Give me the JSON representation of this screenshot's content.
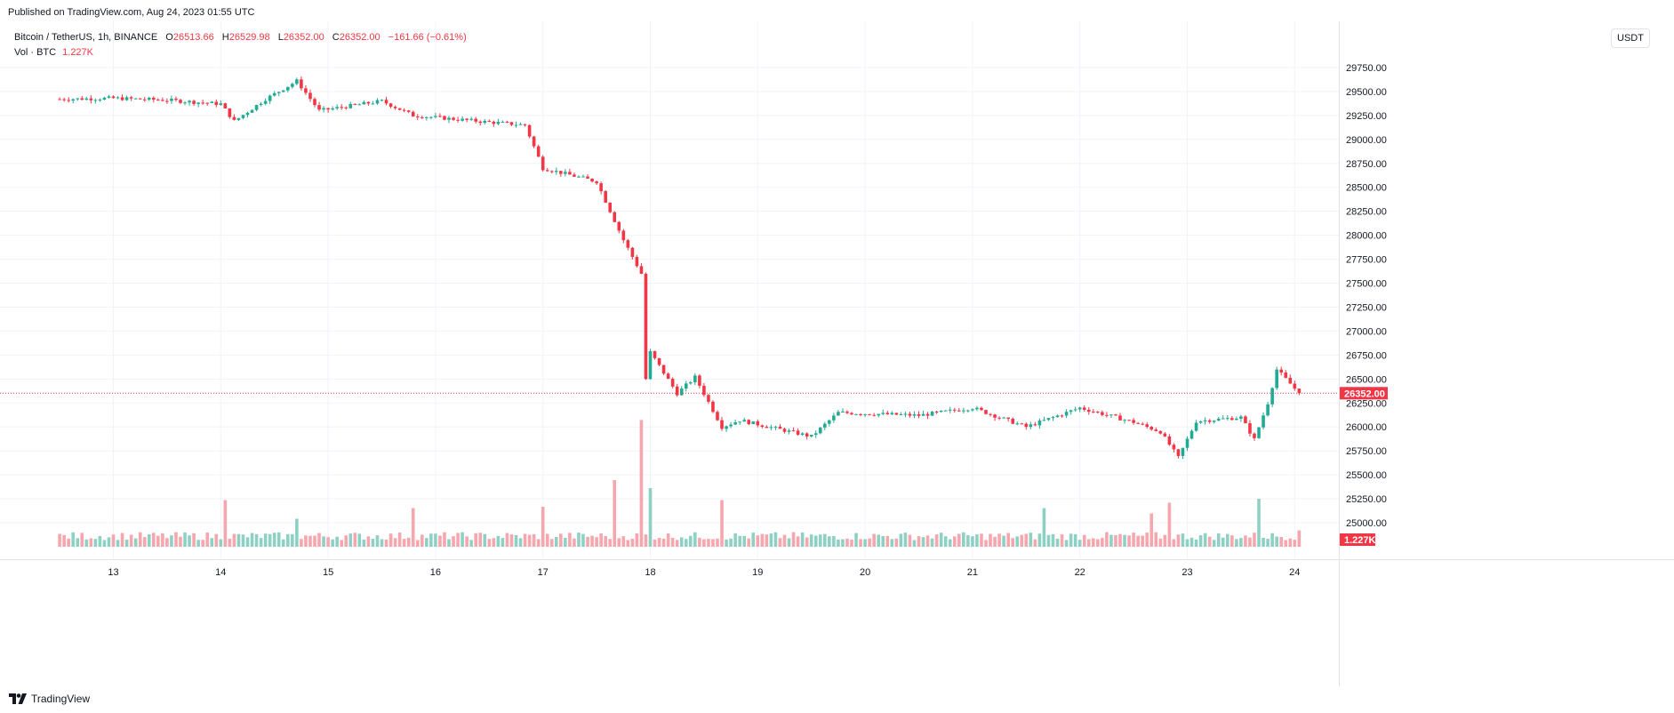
{
  "header": {
    "published": "Published on TradingView.com, Aug 24, 2023 01:55 UTC"
  },
  "legend": {
    "symbol": "Bitcoin / TetherUS, 1h, BINANCE",
    "o_label": "O",
    "o_value": "26513.66",
    "h_label": "H",
    "h_value": "26529.98",
    "l_label": "L",
    "l_value": "26352.00",
    "c_label": "C",
    "c_value": "26352.00",
    "change": "−161.66 (−0.61%)",
    "vol_label": "Vol · BTC",
    "vol_value": "1.227K"
  },
  "currency_button": "USDT",
  "footer": {
    "brand": "TradingView"
  },
  "colors": {
    "up": "#22ab94",
    "down": "#f23645",
    "up_vol": "#8fd0c5",
    "down_vol": "#f6a6ad",
    "grid": "#f0f3fa"
  },
  "chart_data": {
    "type": "candlestick",
    "symbol": "Bitcoin / TetherUS",
    "interval": "1h",
    "exchange": "BINANCE",
    "y_ticks": [
      "29750.00",
      "29500.00",
      "29250.00",
      "29000.00",
      "28750.00",
      "28500.00",
      "28250.00",
      "28000.00",
      "27750.00",
      "27500.00",
      "27250.00",
      "27000.00",
      "26750.00",
      "26500.00",
      "26250.00",
      "26000.00",
      "25750.00",
      "25500.00",
      "25250.00",
      "25000.00"
    ],
    "x_ticks": [
      "13",
      "14",
      "15",
      "16",
      "17",
      "18",
      "19",
      "20",
      "21",
      "22",
      "23",
      "24"
    ],
    "last_price": "26352.00",
    "last_volume": "1.227K",
    "price_ylim": [
      24750,
      30000
    ],
    "price_path_keypoints": [
      {
        "t": "Aug 12 12:00",
        "price": 29420
      },
      {
        "t": "Aug 13 00:00",
        "price": 29430
      },
      {
        "t": "Aug 13 12:00",
        "price": 29410
      },
      {
        "t": "Aug 14 00:00",
        "price": 29370
      },
      {
        "t": "Aug 14 03:00",
        "price": 29190
      },
      {
        "t": "Aug 14 10:00",
        "price": 29420
      },
      {
        "t": "Aug 14 17:00",
        "price": 29610
      },
      {
        "t": "Aug 14 22:00",
        "price": 29300
      },
      {
        "t": "Aug 15 12:00",
        "price": 29400
      },
      {
        "t": "Aug 15 19:00",
        "price": 29250
      },
      {
        "t": "Aug 16 12:00",
        "price": 29180
      },
      {
        "t": "Aug 16 20:00",
        "price": 29150
      },
      {
        "t": "Aug 17 00:00",
        "price": 28700
      },
      {
        "t": "Aug 17 12:00",
        "price": 28560
      },
      {
        "t": "Aug 17 18:00",
        "price": 27950
      },
      {
        "t": "Aug 17 22:00",
        "price": 27600
      },
      {
        "t": "Aug 17 23:00",
        "price": 26500
      },
      {
        "t": "Aug 18 00:00",
        "price": 26780
      },
      {
        "t": "Aug 18 06:00",
        "price": 26350
      },
      {
        "t": "Aug 18 10:00",
        "price": 26520
      },
      {
        "t": "Aug 18 16:00",
        "price": 26000
      },
      {
        "t": "Aug 18 20:00",
        "price": 26070
      },
      {
        "t": "Aug 19 12:00",
        "price": 25900
      },
      {
        "t": "Aug 19 18:00",
        "price": 26150
      },
      {
        "t": "Aug 20 12:00",
        "price": 26120
      },
      {
        "t": "Aug 21 00:00",
        "price": 26200
      },
      {
        "t": "Aug 21 12:00",
        "price": 26000
      },
      {
        "t": "Aug 22 00:00",
        "price": 26200
      },
      {
        "t": "Aug 22 12:00",
        "price": 26050
      },
      {
        "t": "Aug 22 18:00",
        "price": 25950
      },
      {
        "t": "Aug 22 22:00",
        "price": 25680
      },
      {
        "t": "Aug 23 02:00",
        "price": 26060
      },
      {
        "t": "Aug 23 12:00",
        "price": 26100
      },
      {
        "t": "Aug 23 15:00",
        "price": 25870
      },
      {
        "t": "Aug 23 18:00",
        "price": 26250
      },
      {
        "t": "Aug 23 20:00",
        "price": 26600
      },
      {
        "t": "Aug 24 01:00",
        "price": 26352
      }
    ],
    "volume_keypoints_btc": [
      {
        "t": "Aug 14 01:00",
        "vol": 3500
      },
      {
        "t": "Aug 14 17:00",
        "vol": 2100
      },
      {
        "t": "Aug 15 19:00",
        "vol": 2900
      },
      {
        "t": "Aug 17 00:00",
        "vol": 3000
      },
      {
        "t": "Aug 17 16:00",
        "vol": 5000
      },
      {
        "t": "Aug 17 22:00",
        "vol": 9500
      },
      {
        "t": "Aug 18 00:00",
        "vol": 4400
      },
      {
        "t": "Aug 18 16:00",
        "vol": 3500
      },
      {
        "t": "Aug 21 16:00",
        "vol": 2900
      },
      {
        "t": "Aug 22 16:00",
        "vol": 2500
      },
      {
        "t": "Aug 22 20:00",
        "vol": 3300
      },
      {
        "t": "Aug 23 16:00",
        "vol": 3600
      },
      {
        "t": "Aug 24 01:00",
        "vol": 1227
      }
    ]
  }
}
